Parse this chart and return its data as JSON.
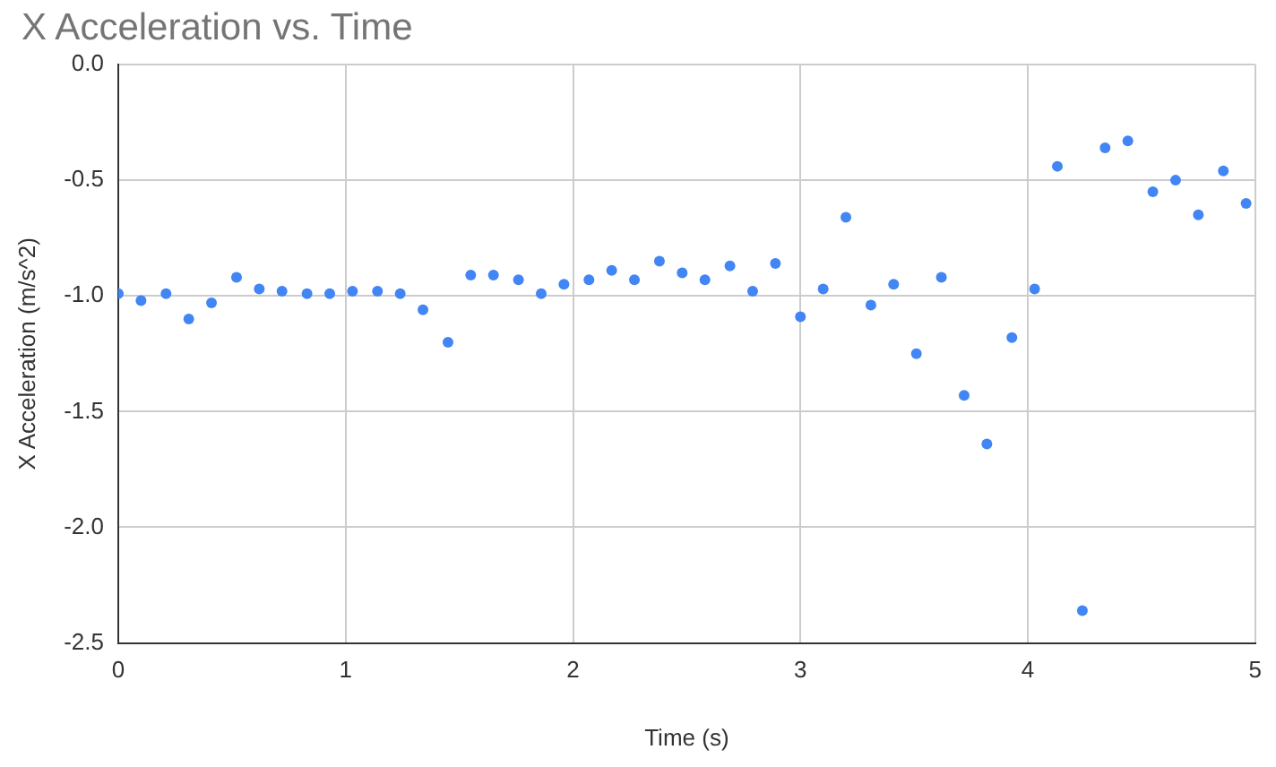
{
  "chart_data": {
    "type": "scatter",
    "title": "X Acceleration vs. Time",
    "xlabel": "Time (s)",
    "ylabel": "X Acceleration (m/s^2)",
    "x": [
      0,
      0.1,
      0.21,
      0.31,
      0.41,
      0.52,
      0.62,
      0.72,
      0.83,
      0.93,
      1.03,
      1.14,
      1.24,
      1.34,
      1.45,
      1.55,
      1.65,
      1.76,
      1.86,
      1.96,
      2.07,
      2.17,
      2.27,
      2.38,
      2.48,
      2.58,
      2.69,
      2.79,
      2.89,
      3.0,
      3.1,
      3.2,
      3.31,
      3.41,
      3.51,
      3.62,
      3.72,
      3.82,
      3.93,
      4.03,
      4.13,
      4.24,
      4.34,
      4.44,
      4.55,
      4.65,
      4.75,
      4.86,
      4.96
    ],
    "values": [
      -0.99,
      -1.02,
      -0.99,
      -1.1,
      -1.03,
      -0.92,
      -0.97,
      -0.98,
      -0.99,
      -0.99,
      -0.98,
      -0.98,
      -0.99,
      -1.06,
      -1.2,
      -0.91,
      -0.91,
      -0.93,
      -0.99,
      -0.95,
      -0.93,
      -0.89,
      -0.93,
      -0.85,
      -0.9,
      -0.93,
      -0.87,
      -0.98,
      -0.86,
      -1.09,
      -0.97,
      -0.66,
      -1.04,
      -0.95,
      -1.25,
      -0.92,
      -1.43,
      -1.64,
      -1.18,
      -0.97,
      -0.44,
      -2.36,
      -0.36,
      -0.33,
      -0.55,
      -0.5,
      -0.65,
      -0.46,
      -0.6
    ],
    "color": "#4285f4",
    "marker": "circle",
    "xlim": [
      0,
      5
    ],
    "xticks": [
      0,
      1,
      2,
      3,
      4,
      5
    ],
    "ylim": [
      -2.5,
      0
    ],
    "yticks": [
      -2.5,
      {
        "value": -2,
        "label": "-2.0"
      },
      -1.5,
      {
        "value": -1,
        "label": "-1.0"
      },
      -0.5,
      {
        "value": 0,
        "label": "0.0"
      }
    ],
    "grid": true,
    "legend": false
  }
}
